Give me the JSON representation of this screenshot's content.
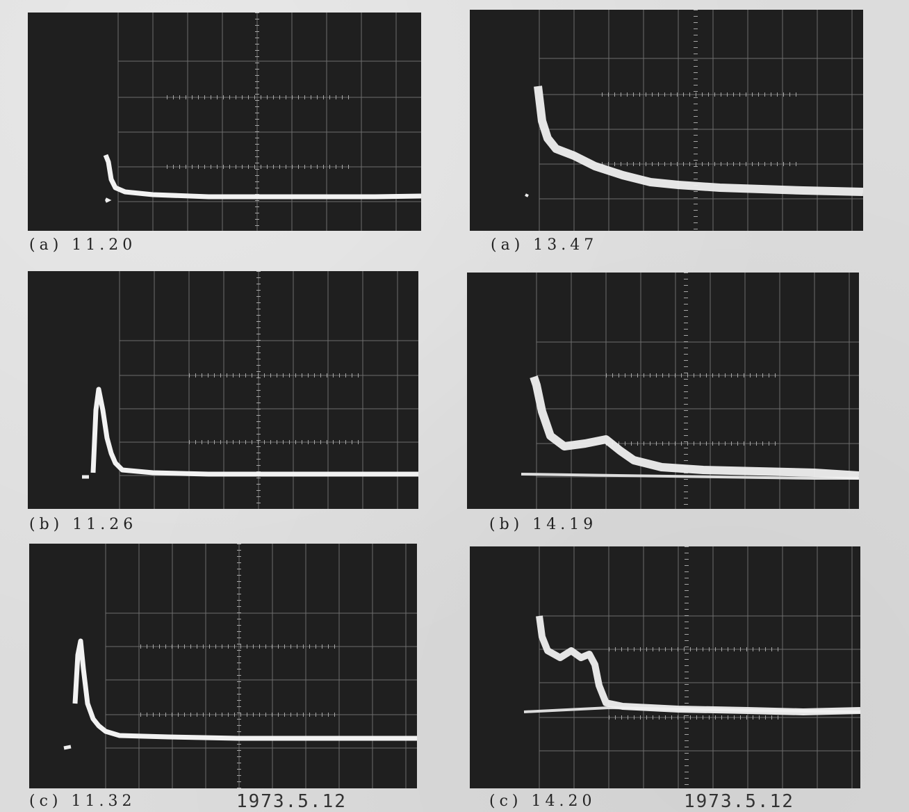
{
  "panels": [
    {
      "caption": "(a)  11.20"
    },
    {
      "caption": "(a)  13.47"
    },
    {
      "caption": "(b)  11.26"
    },
    {
      "caption": "(b)  14.19"
    },
    {
      "caption": "(c)  11.32"
    },
    {
      "caption": "(c)  14.20"
    }
  ],
  "dates": {
    "left": "1973.5.12",
    "right": "1973.5.12"
  },
  "colors": {
    "screen": "#1f1f1f",
    "grid": "#9a9a9a",
    "trace": "#f2f2f2",
    "paper": "#dcdcdc"
  }
}
